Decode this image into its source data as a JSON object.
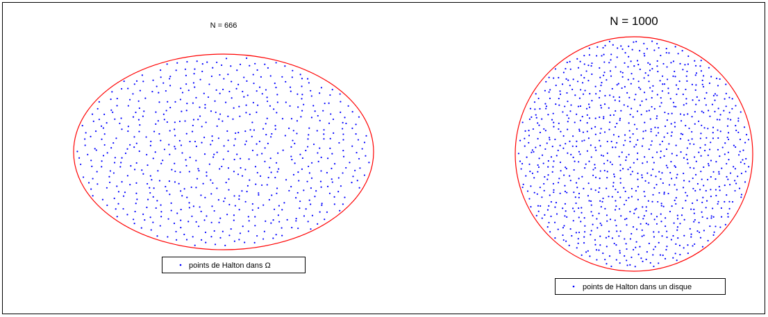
{
  "chart_data": [
    {
      "type": "scatter",
      "title": "N = 666",
      "n_points": 666,
      "region": "ellipse",
      "boundary": {
        "type": "ellipse",
        "color": "#ff0000"
      },
      "series": [
        {
          "name": "points de Halton dans Ω",
          "color": "#0000ff",
          "marker": "dot",
          "sequence": "halton",
          "bases": [
            2,
            3
          ],
          "count": 666
        }
      ],
      "axes_visible": false,
      "grid": false,
      "legend": {
        "position": "bottom-center",
        "label": "points de Halton dans Ω"
      }
    },
    {
      "type": "scatter",
      "title": "N = 1000",
      "n_points": 1000,
      "region": "disk",
      "boundary": {
        "type": "circle",
        "color": "#ff0000"
      },
      "series": [
        {
          "name": "points de Halton dans un disque",
          "color": "#0000ff",
          "marker": "dot",
          "sequence": "halton",
          "bases": [
            2,
            3
          ],
          "count": 1000
        }
      ],
      "axes_visible": false,
      "grid": false,
      "legend": {
        "position": "bottom-center",
        "label": "points de Halton dans un disque"
      }
    }
  ]
}
